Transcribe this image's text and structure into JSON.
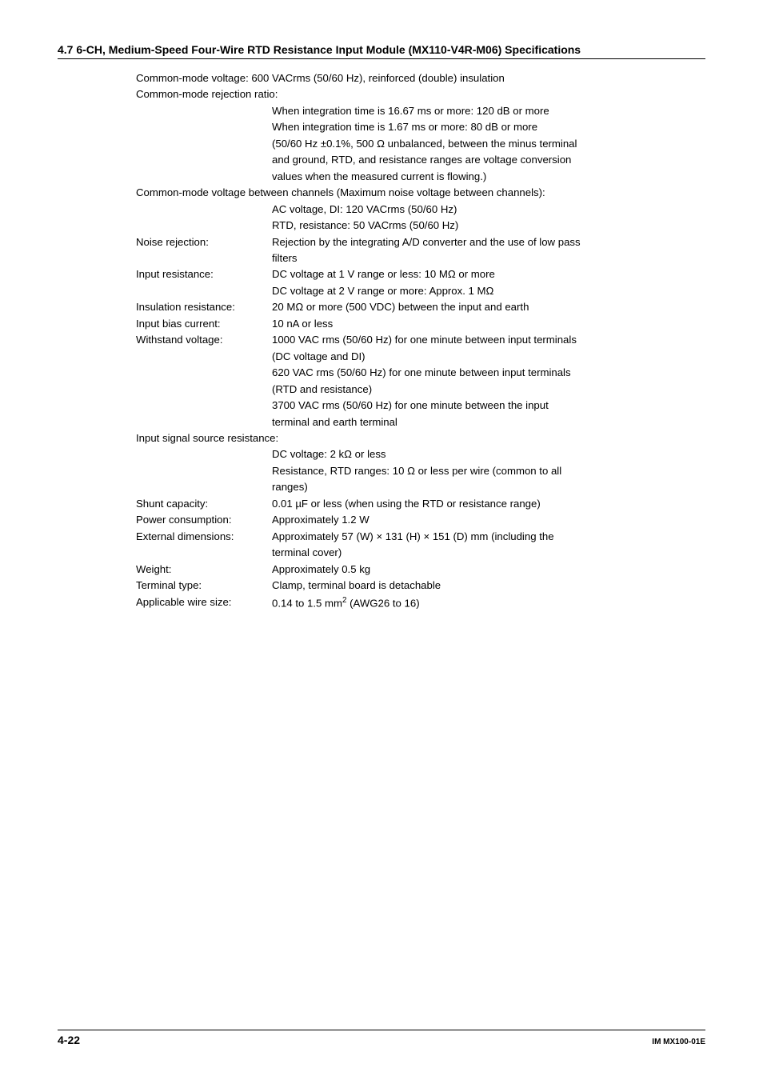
{
  "section_title": "4.7  6-CH, Medium-Speed Four-Wire RTD Resistance Input Module (MX110-V4R-M06) Specifications",
  "lines": {
    "cmv": "Common-mode voltage: 600 VACrms (50/60 Hz), reinforced (double) insulation",
    "cmrr_label": "Common-mode rejection ratio:",
    "cmrr_1": "When integration time is 16.67 ms or more: 120 dB or more",
    "cmrr_2": "When integration time is 1.67 ms or more: 80 dB or more",
    "cmrr_3": "(50/60 Hz ±0.1%, 500 Ω unbalanced, between the minus terminal",
    "cmrr_4": "and ground, RTD, and resistance ranges are voltage conversion",
    "cmrr_5": "values when the measured current is flowing.)",
    "cmvbc_label": "Common-mode voltage between channels (Maximum noise voltage between channels):",
    "cmvbc_1": "AC voltage, DI: 120 VACrms (50/60 Hz)",
    "cmvbc_2": "RTD, resistance: 50 VACrms (50/60 Hz)",
    "noise_label": "Noise rejection:",
    "noise_1": "Rejection by the integrating A/D converter and the use of low pass",
    "noise_2": "filters",
    "input_res_label": "Input resistance:",
    "input_res_1": "DC voltage at 1 V range or less: 10 MΩ or more",
    "input_res_2": "DC voltage at 2 V range or more: Approx. 1 MΩ",
    "insul_label": "Insulation resistance:",
    "insul_val": "20 MΩ or more (500 VDC) between the input and earth",
    "bias_label": "Input bias current:",
    "bias_val": "10 nA or less",
    "withstand_label": "Withstand voltage:",
    "withstand_1": "1000 VAC rms (50/60 Hz) for one minute between input terminals",
    "withstand_2": "(DC voltage and DI)",
    "withstand_3": "620 VAC rms (50/60 Hz) for one minute between input terminals",
    "withstand_4": "(RTD and resistance)",
    "withstand_5": "3700 VAC rms (50/60 Hz) for one minute between the input",
    "withstand_6": "terminal and earth terminal",
    "issr_label": "Input signal source resistance:",
    "issr_1": "DC voltage: 2 kΩ or less",
    "issr_2": "Resistance, RTD ranges: 10 Ω or less per wire (common to all",
    "issr_3": "ranges)",
    "shunt_label": "Shunt capacity:",
    "shunt_val": "0.01 µF or less (when using the RTD or resistance range)",
    "power_label": "Power consumption:",
    "power_val": "Approximately 1.2 W",
    "ext_label": "External dimensions:",
    "ext_1": "Approximately 57 (W) × 131 (H) × 151 (D) mm (including the",
    "ext_2": "terminal cover)",
    "weight_label": "Weight:",
    "weight_val": "Approximately 0.5 kg",
    "term_label": "Terminal type:",
    "term_val": "Clamp, terminal board is detachable",
    "wire_label": "Applicable wire size:",
    "wire_pre": "0.14 to 1.5 mm",
    "wire_sup": "2",
    "wire_post": " (AWG26 to 16)"
  },
  "footer": {
    "page": "4-22",
    "doc": "IM MX100-01E"
  }
}
